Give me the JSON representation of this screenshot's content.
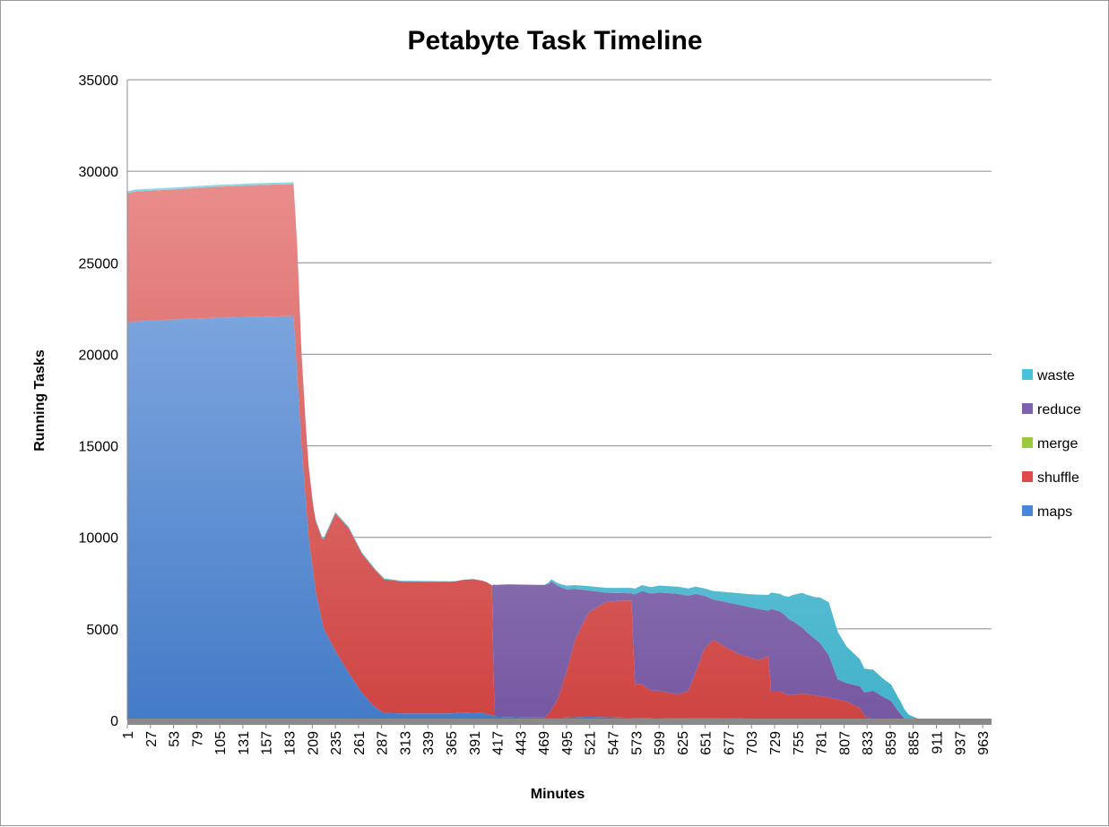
{
  "chart_data": {
    "type": "area",
    "stacked": true,
    "title": "Petabyte Task Timeline",
    "xlabel": "Minutes",
    "ylabel": "Running Tasks",
    "ylim": [
      0,
      35000
    ],
    "xlim": [
      1,
      973
    ],
    "yticks": [
      0,
      5000,
      10000,
      15000,
      20000,
      25000,
      30000,
      35000
    ],
    "xticks": [
      1,
      27,
      53,
      79,
      105,
      131,
      157,
      183,
      209,
      235,
      261,
      287,
      313,
      339,
      365,
      391,
      417,
      443,
      469,
      495,
      521,
      547,
      573,
      599,
      625,
      651,
      677,
      703,
      729,
      755,
      781,
      807,
      833,
      859,
      885,
      911,
      937,
      963
    ],
    "grid": true,
    "legend_position": "right",
    "series": [
      {
        "name": "maps",
        "color": "#4a86d8",
        "points": [
          [
            1,
            21700
          ],
          [
            10,
            21800
          ],
          [
            50,
            21900
          ],
          [
            100,
            22000
          ],
          [
            150,
            22050
          ],
          [
            188,
            22100
          ],
          [
            192,
            19000
          ],
          [
            197,
            15000
          ],
          [
            205,
            10000
          ],
          [
            213,
            7000
          ],
          [
            222,
            5000
          ],
          [
            235,
            3800
          ],
          [
            250,
            2600
          ],
          [
            265,
            1500
          ],
          [
            280,
            700
          ],
          [
            290,
            400
          ],
          [
            310,
            380
          ],
          [
            350,
            380
          ],
          [
            365,
            380
          ],
          [
            380,
            430
          ],
          [
            400,
            400
          ],
          [
            410,
            300
          ],
          [
            415,
            200
          ],
          [
            440,
            170
          ],
          [
            470,
            150
          ],
          [
            490,
            150
          ],
          [
            520,
            200
          ],
          [
            560,
            150
          ],
          [
            600,
            120
          ],
          [
            650,
            110
          ],
          [
            700,
            100
          ],
          [
            730,
            90
          ],
          [
            760,
            70
          ],
          [
            800,
            40
          ],
          [
            830,
            25
          ],
          [
            860,
            10
          ],
          [
            880,
            5
          ],
          [
            973,
            0
          ]
        ]
      },
      {
        "name": "shuffle",
        "color": "#e04a48",
        "points": [
          [
            1,
            7100
          ],
          [
            10,
            7100
          ],
          [
            50,
            7100
          ],
          [
            100,
            7150
          ],
          [
            150,
            7200
          ],
          [
            188,
            7200
          ],
          [
            192,
            7000
          ],
          [
            197,
            5000
          ],
          [
            202,
            4000
          ],
          [
            210,
            3600
          ],
          [
            220,
            4500
          ],
          [
            235,
            7500
          ],
          [
            250,
            7900
          ],
          [
            265,
            7600
          ],
          [
            280,
            7500
          ],
          [
            290,
            7300
          ],
          [
            310,
            7200
          ],
          [
            350,
            7200
          ],
          [
            370,
            7200
          ],
          [
            390,
            7300
          ],
          [
            405,
            7200
          ],
          [
            411,
            7100
          ],
          [
            414,
            0
          ],
          [
            470,
            0
          ],
          [
            475,
            200
          ],
          [
            485,
            1000
          ],
          [
            495,
            2500
          ],
          [
            505,
            4300
          ],
          [
            520,
            5700
          ],
          [
            540,
            6300
          ],
          [
            560,
            6400
          ],
          [
            568,
            6400
          ],
          [
            572,
            1850
          ],
          [
            580,
            1850
          ],
          [
            590,
            1500
          ],
          [
            600,
            1500
          ],
          [
            620,
            1300
          ],
          [
            632,
            1500
          ],
          [
            640,
            2500
          ],
          [
            650,
            3800
          ],
          [
            660,
            4300
          ],
          [
            670,
            4000
          ],
          [
            690,
            3500
          ],
          [
            710,
            3200
          ],
          [
            722,
            3400
          ],
          [
            725,
            1500
          ],
          [
            735,
            1500
          ],
          [
            745,
            1300
          ],
          [
            760,
            1400
          ],
          [
            775,
            1300
          ],
          [
            790,
            1200
          ],
          [
            810,
            1000
          ],
          [
            825,
            650
          ],
          [
            830,
            250
          ],
          [
            840,
            0
          ],
          [
            973,
            0
          ]
        ]
      },
      {
        "name": "merge",
        "color": "#9bc83c",
        "points": [
          [
            1,
            0
          ],
          [
            973,
            0
          ]
        ]
      },
      {
        "name": "reduce",
        "color": "#8060b0",
        "points": [
          [
            1,
            0
          ],
          [
            411,
            0
          ],
          [
            414,
            7200
          ],
          [
            430,
            7250
          ],
          [
            470,
            7250
          ],
          [
            478,
            7000
          ],
          [
            485,
            6200
          ],
          [
            495,
            4500
          ],
          [
            505,
            2700
          ],
          [
            520,
            1200
          ],
          [
            540,
            500
          ],
          [
            560,
            400
          ],
          [
            568,
            400
          ],
          [
            572,
            4900
          ],
          [
            590,
            5300
          ],
          [
            620,
            5500
          ],
          [
            632,
            5200
          ],
          [
            640,
            4300
          ],
          [
            650,
            2900
          ],
          [
            660,
            2200
          ],
          [
            670,
            2400
          ],
          [
            690,
            2700
          ],
          [
            710,
            2800
          ],
          [
            722,
            2500
          ],
          [
            725,
            4500
          ],
          [
            740,
            4300
          ],
          [
            750,
            4000
          ],
          [
            765,
            3400
          ],
          [
            780,
            2900
          ],
          [
            790,
            2300
          ],
          [
            800,
            1100
          ],
          [
            810,
            1000
          ],
          [
            830,
            1250
          ],
          [
            840,
            1600
          ],
          [
            850,
            1300
          ],
          [
            860,
            1050
          ],
          [
            868,
            500
          ],
          [
            875,
            100
          ],
          [
            880,
            0
          ],
          [
            973,
            0
          ]
        ]
      },
      {
        "name": "waste",
        "color": "#48c2dc",
        "points": [
          [
            1,
            100
          ],
          [
            10,
            100
          ],
          [
            100,
            100
          ],
          [
            188,
            100
          ],
          [
            411,
            0
          ],
          [
            470,
            0
          ],
          [
            475,
            100
          ],
          [
            495,
            200
          ],
          [
            530,
            250
          ],
          [
            570,
            300
          ],
          [
            600,
            380
          ],
          [
            650,
            400
          ],
          [
            700,
            700
          ],
          [
            740,
            1000
          ],
          [
            760,
            1900
          ],
          [
            775,
            2300
          ],
          [
            790,
            2900
          ],
          [
            800,
            2600
          ],
          [
            810,
            2000
          ],
          [
            830,
            1300
          ],
          [
            850,
            1000
          ],
          [
            860,
            900
          ],
          [
            870,
            700
          ],
          [
            880,
            300
          ],
          [
            890,
            100
          ],
          [
            900,
            60
          ],
          [
            973,
            50
          ]
        ]
      }
    ]
  }
}
